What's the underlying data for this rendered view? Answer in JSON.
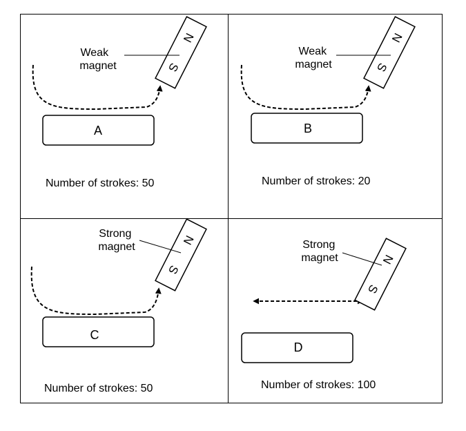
{
  "panels": [
    {
      "id": "a",
      "bar_label": "A",
      "magnet_label": [
        "Weak",
        "magnet"
      ],
      "strokes_text": "Number of strokes: 50"
    },
    {
      "id": "b",
      "bar_label": "B",
      "magnet_label": [
        "Weak",
        "magnet"
      ],
      "strokes_text": "Number of strokes: 20"
    },
    {
      "id": "c",
      "bar_label": "C",
      "magnet_label": [
        "Strong",
        "magnet"
      ],
      "strokes_text": "Number of strokes: 50"
    },
    {
      "id": "d",
      "bar_label": "D",
      "magnet_label": [
        "Strong",
        "magnet"
      ],
      "strokes_text": "Number of strokes: 100"
    }
  ],
  "magnet_poles": {
    "north": "N",
    "south": "S"
  },
  "colors": {
    "stroke": "#000000",
    "background": "#ffffff"
  }
}
